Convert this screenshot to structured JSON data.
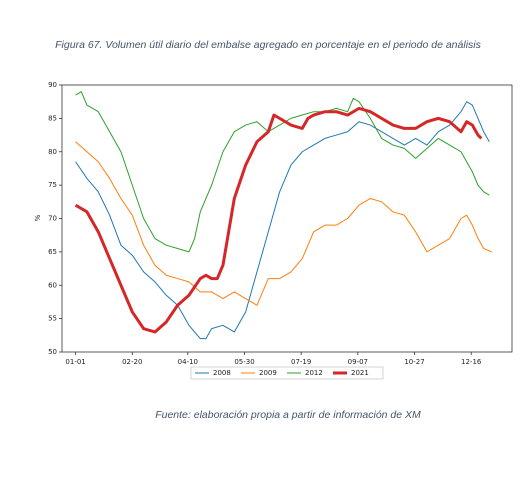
{
  "chart_data": {
    "type": "line",
    "title": "Figura 67. Volumen útil diario del embalse agregado en porcentaje en el periodo de análisis",
    "source": "Fuente: elaboración propia a partir de información de XM",
    "ylabel": "%",
    "xlim": [
      -12,
      385
    ],
    "ylim": [
      50,
      90
    ],
    "xticks": [
      {
        "value": 0,
        "label": "01-01"
      },
      {
        "value": 50,
        "label": "02-20"
      },
      {
        "value": 99,
        "label": "04-10"
      },
      {
        "value": 149,
        "label": "05-30"
      },
      {
        "value": 199,
        "label": "07-19"
      },
      {
        "value": 249,
        "label": "09-07"
      },
      {
        "value": 299,
        "label": "10-27"
      },
      {
        "value": 349,
        "label": "12-16"
      }
    ],
    "yticks": [
      50,
      55,
      60,
      65,
      70,
      75,
      80,
      85,
      90
    ],
    "grid": false,
    "legend": "bottom",
    "series": [
      {
        "name": "2008",
        "color": "#1f77b4",
        "width": 1,
        "x": [
          0,
          10,
          20,
          30,
          40,
          50,
          60,
          70,
          80,
          90,
          100,
          110,
          115,
          120,
          130,
          140,
          150,
          160,
          170,
          180,
          190,
          200,
          210,
          220,
          230,
          240,
          250,
          260,
          270,
          280,
          290,
          300,
          310,
          320,
          330,
          340,
          345,
          350,
          360,
          365
        ],
        "values": [
          78.5,
          76,
          74,
          70.5,
          66,
          64.5,
          62,
          60.5,
          58.5,
          57,
          54,
          52,
          52,
          53.5,
          54,
          53,
          56,
          62,
          68,
          74,
          78,
          80,
          81,
          82,
          82.5,
          83,
          84.5,
          84,
          83,
          82,
          81,
          82,
          81,
          83,
          84,
          86,
          87.5,
          87,
          83,
          81.5
        ]
      },
      {
        "name": "2009",
        "color": "#ff7f0e",
        "width": 1,
        "x": [
          0,
          10,
          20,
          30,
          40,
          50,
          60,
          70,
          80,
          90,
          100,
          110,
          120,
          130,
          140,
          150,
          160,
          170,
          180,
          190,
          200,
          210,
          220,
          230,
          240,
          250,
          260,
          270,
          280,
          290,
          300,
          310,
          320,
          330,
          340,
          345,
          350,
          355,
          360,
          367
        ],
        "values": [
          81.5,
          80,
          78.5,
          76,
          73,
          70.5,
          66,
          63,
          61.5,
          61,
          60.5,
          59,
          59,
          58,
          59,
          58,
          57,
          61,
          61,
          62,
          64,
          68,
          69,
          69,
          70,
          72,
          73,
          72.5,
          71,
          70.5,
          68,
          65,
          66,
          67,
          70,
          70.5,
          69,
          67,
          65.5,
          65
        ]
      },
      {
        "name": "2012",
        "color": "#2ca02c",
        "width": 1,
        "x": [
          0,
          5,
          10,
          20,
          30,
          40,
          50,
          60,
          70,
          80,
          90,
          100,
          105,
          110,
          120,
          130,
          140,
          150,
          160,
          170,
          180,
          190,
          200,
          210,
          220,
          230,
          240,
          245,
          250,
          260,
          270,
          280,
          290,
          300,
          310,
          320,
          330,
          340,
          350,
          355,
          360,
          365
        ],
        "values": [
          88.5,
          89,
          87,
          86,
          83,
          80,
          75,
          70,
          67,
          66,
          65.5,
          65,
          67,
          71,
          75,
          80,
          83,
          84,
          84.5,
          83,
          84,
          85,
          85.5,
          86,
          86,
          86.5,
          86,
          88,
          87.5,
          85,
          82,
          81,
          80.5,
          79,
          80.5,
          82,
          81,
          80,
          77,
          75,
          74,
          73.5
        ]
      },
      {
        "name": "2021",
        "color": "#d62728",
        "width": 3,
        "x": [
          0,
          5,
          10,
          20,
          30,
          40,
          50,
          60,
          70,
          80,
          90,
          100,
          110,
          115,
          120,
          125,
          130,
          135,
          140,
          150,
          160,
          170,
          175,
          180,
          190,
          200,
          205,
          210,
          220,
          230,
          240,
          250,
          260,
          270,
          280,
          290,
          300,
          310,
          320,
          330,
          340,
          345,
          350,
          355,
          358
        ],
        "values": [
          72,
          71.5,
          71,
          68,
          64,
          60,
          56,
          53.5,
          53,
          54.5,
          57,
          58.5,
          61,
          61.5,
          61,
          61,
          63,
          68,
          73,
          78,
          81.5,
          83,
          85.5,
          85,
          84,
          83.5,
          85,
          85.5,
          86,
          86,
          85.5,
          86.5,
          86,
          85,
          84,
          83.5,
          83.5,
          84.5,
          85,
          84.5,
          83,
          84.5,
          84,
          82.5,
          82
        ]
      }
    ]
  }
}
